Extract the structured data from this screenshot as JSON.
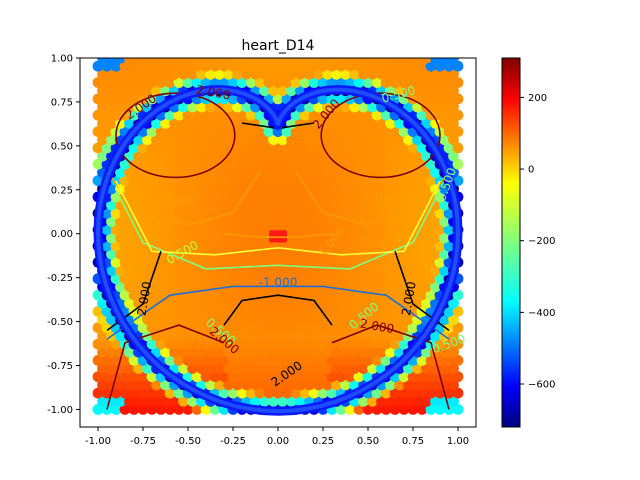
{
  "chart_data": {
    "type": "heatmap",
    "title": "heart_D14",
    "xlabel": "",
    "ylabel": "",
    "xlim": [
      -1.1,
      1.1
    ],
    "ylim": [
      -1.1,
      1.0
    ],
    "x_ticks": [
      "-1.00",
      "-0.75",
      "-0.50",
      "-0.25",
      "0.00",
      "0.25",
      "0.50",
      "0.75",
      "1.00"
    ],
    "y_ticks": [
      "-1.00",
      "-0.75",
      "-0.50",
      "-0.25",
      "0.00",
      "0.25",
      "0.50",
      "0.75",
      "1.00"
    ],
    "colorbar": {
      "colormap": "jet",
      "range": [
        -720,
        310
      ],
      "ticks": [
        "200",
        "0",
        "−200",
        "−400",
        "−600"
      ]
    },
    "contour_labels": [
      {
        "text": "2.000",
        "x": -0.36,
        "y": 0.8,
        "color": "#7f0000",
        "rotate": 10
      },
      {
        "text": "2.000",
        "x": -0.76,
        "y": 0.72,
        "color": "#7f0000",
        "rotate": -35
      },
      {
        "text": "2.000",
        "x": 0.27,
        "y": 0.68,
        "color": "#7f0000",
        "rotate": -50
      },
      {
        "text": "0.500",
        "x": 0.67,
        "y": 0.79,
        "color": "#7fff7f",
        "rotate": -15
      },
      {
        "text": "0.500",
        "x": 0.94,
        "y": 0.28,
        "color": "#7fff7f",
        "rotate": -70
      },
      {
        "text": "1.000",
        "x": -0.56,
        "y": 0.18,
        "color": "#ff9a00",
        "rotate": 0
      },
      {
        "text": "1.000",
        "x": 0.62,
        "y": 0.18,
        "color": "#ff9a00",
        "rotate": 0
      },
      {
        "text": "1.000",
        "x": 0.3,
        "y": -0.05,
        "color": "#ff9a00",
        "rotate": -50
      },
      {
        "text": "0.500",
        "x": -0.53,
        "y": -0.11,
        "color": "#c4ff36",
        "rotate": -30
      },
      {
        "text": "-1.000",
        "x": 0.0,
        "y": -0.28,
        "color": "#1e6fd9",
        "rotate": 0
      },
      {
        "text": "2.000",
        "x": -0.74,
        "y": -0.37,
        "color": "#000000",
        "rotate": -80
      },
      {
        "text": "2.000",
        "x": 0.73,
        "y": -0.37,
        "color": "#000000",
        "rotate": -80
      },
      {
        "text": "0.500",
        "x": -0.32,
        "y": -0.56,
        "color": "#7fff7f",
        "rotate": 40
      },
      {
        "text": "0.500",
        "x": 0.48,
        "y": -0.47,
        "color": "#7fff7f",
        "rotate": -40
      },
      {
        "text": "2.000",
        "x": -0.3,
        "y": -0.61,
        "color": "#7f0000",
        "rotate": 40
      },
      {
        "text": "2.000",
        "x": 0.55,
        "y": -0.53,
        "color": "#7f0000",
        "rotate": 10
      },
      {
        "text": "0.500",
        "x": 0.95,
        "y": -0.63,
        "color": "#7fff7f",
        "rotate": -20
      },
      {
        "text": "2.000",
        "x": 0.05,
        "y": -0.8,
        "color": "#000000",
        "rotate": -35
      }
    ]
  }
}
